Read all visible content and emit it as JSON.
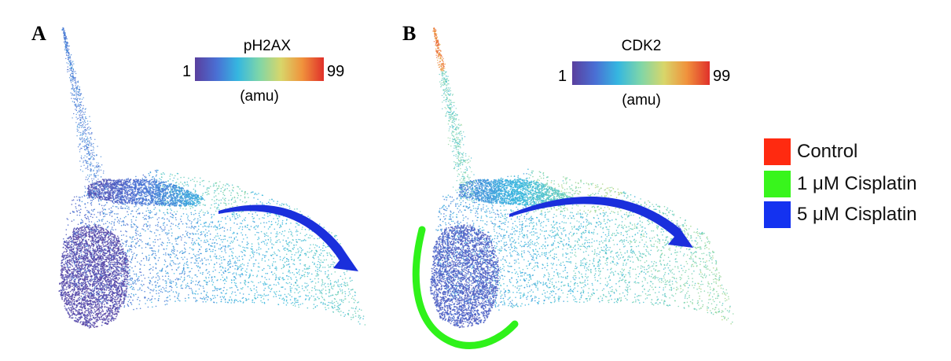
{
  "panels": [
    {
      "letter": "A",
      "marker": "pH2AX",
      "colorbar": {
        "min": "1",
        "max": "99",
        "unit": "(amu)"
      }
    },
    {
      "letter": "B",
      "marker": "CDK2",
      "colorbar": {
        "min": "1",
        "max": "99",
        "unit": "(amu)"
      }
    }
  ],
  "legend": [
    {
      "label": "Control",
      "color": "#ff2a10"
    },
    {
      "label": "1 μM Cisplatin",
      "color": "#38f51c"
    },
    {
      "label": "5 μM Cisplatin",
      "color": "#1432f0"
    }
  ],
  "colors": {
    "colormap": [
      "#5a3f9e",
      "#4a6fd4",
      "#35b7e0",
      "#7fd6a8",
      "#d8d66a",
      "#f0923c",
      "#e0302a"
    ],
    "arrow": "#1a2fdc",
    "highlight_arc": "#2ff21a"
  }
}
